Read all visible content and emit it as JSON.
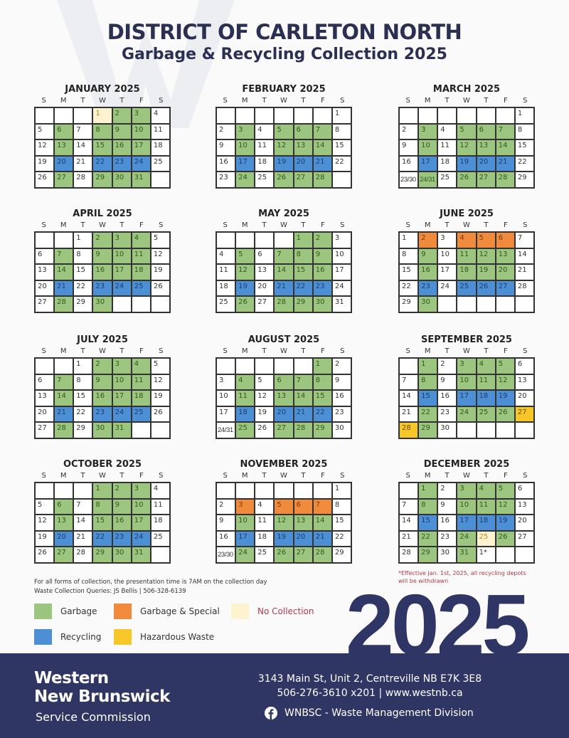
{
  "header": {
    "title": "DISTRICT OF CARLETON NORTH",
    "subtitle": "Garbage & Recycling Collection 2025"
  },
  "weekdays": [
    "S",
    "M",
    "T",
    "W",
    "T",
    "F",
    "S"
  ],
  "colors": {
    "garbage": "#9cc67f",
    "recycling": "#4d8fd5",
    "garbage_special": "#f08a3c",
    "hazardous": "#f7c72a",
    "no_collection": "#fdf4cf",
    "navy": "#303663"
  },
  "months": [
    {
      "name": "JANUARY 2025",
      "weeks": [
        [
          "",
          "",
          "",
          "1",
          "2",
          "3",
          "4"
        ],
        [
          "5",
          "6",
          "7",
          "8",
          "9",
          "10",
          "11"
        ],
        [
          "12",
          "13",
          "14",
          "15",
          "16",
          "17",
          "18"
        ],
        [
          "19",
          "20",
          "21",
          "22",
          "23",
          "24",
          "25"
        ],
        [
          "26",
          "27",
          "28",
          "29",
          "30",
          "31",
          ""
        ]
      ],
      "types": [
        "...ngg.",
        ".g.ggg.",
        ".g.ggg.",
        ".b.bbb.",
        ".g.ggg."
      ]
    },
    {
      "name": "FEBRUARY 2025",
      "weeks": [
        [
          "",
          "",
          "",
          "",
          "",
          "",
          "1"
        ],
        [
          "2",
          "3",
          "4",
          "5",
          "6",
          "7",
          "8"
        ],
        [
          "9",
          "10",
          "11",
          "12",
          "13",
          "14",
          "15"
        ],
        [
          "16",
          "17",
          "18",
          "19",
          "20",
          "21",
          "22"
        ],
        [
          "23",
          "24",
          "25",
          "26",
          "27",
          "28",
          ""
        ]
      ],
      "types": [
        ".......",
        ".g.ggg.",
        ".g.ggg.",
        ".b.bbb.",
        ".g.ggg."
      ]
    },
    {
      "name": "MARCH 2025",
      "weeks": [
        [
          "",
          "",
          "",
          "",
          "",
          "",
          "1"
        ],
        [
          "2",
          "3",
          "4",
          "5",
          "6",
          "7",
          "8"
        ],
        [
          "9",
          "10",
          "11",
          "12",
          "13",
          "14",
          "15"
        ],
        [
          "16",
          "17",
          "18",
          "19",
          "20",
          "21",
          "22"
        ],
        [
          "23/30",
          "24/31",
          "25",
          "26",
          "27",
          "28",
          "29"
        ]
      ],
      "types": [
        ".......",
        ".g.ggg.",
        ".g.ggg.",
        ".b.bbb.",
        ".g.ggg."
      ]
    },
    {
      "name": "APRIL 2025",
      "weeks": [
        [
          "",
          "",
          "1",
          "2",
          "3",
          "4",
          "5"
        ],
        [
          "6",
          "7",
          "8",
          "9",
          "10",
          "11",
          "12"
        ],
        [
          "13",
          "14",
          "15",
          "16",
          "17",
          "18",
          "19"
        ],
        [
          "20",
          "21",
          "22",
          "23",
          "24",
          "25",
          "26"
        ],
        [
          "27",
          "28",
          "29",
          "30",
          "",
          "",
          ""
        ]
      ],
      "types": [
        "...ggg.",
        ".g.ggg.",
        ".g.ggg.",
        ".b.bbb.",
        ".g.g..."
      ]
    },
    {
      "name": "MAY 2025",
      "weeks": [
        [
          "",
          "",
          "",
          "",
          "1",
          "2",
          "3"
        ],
        [
          "4",
          "5",
          "6",
          "7",
          "8",
          "9",
          "10"
        ],
        [
          "11",
          "12",
          "13",
          "14",
          "15",
          "16",
          "17"
        ],
        [
          "18",
          "19",
          "20",
          "21",
          "22",
          "23",
          "24"
        ],
        [
          "25",
          "26",
          "27",
          "28",
          "29",
          "30",
          "31"
        ]
      ],
      "types": [
        "....gg.",
        ".g.ggg.",
        ".g.ggg.",
        ".b.bbb.",
        ".g.ggg."
      ]
    },
    {
      "name": "JUNE 2025",
      "weeks": [
        [
          "1",
          "2",
          "3",
          "4",
          "5",
          "6",
          "7"
        ],
        [
          "8",
          "9",
          "10",
          "11",
          "12",
          "13",
          "14"
        ],
        [
          "15",
          "16",
          "17",
          "18",
          "19",
          "20",
          "21"
        ],
        [
          "22",
          "23",
          "24",
          "25",
          "26",
          "27",
          "28"
        ],
        [
          "29",
          "30",
          "",
          "",
          "",
          "",
          ""
        ]
      ],
      "types": [
        ".o.ooo.",
        ".g.ggg.",
        ".g.ggg.",
        ".b.bbb.",
        ".g....."
      ]
    },
    {
      "name": "JULY 2025",
      "weeks": [
        [
          "",
          "",
          "1",
          "2",
          "3",
          "4",
          "5"
        ],
        [
          "6",
          "7",
          "8",
          "9",
          "10",
          "11",
          "12"
        ],
        [
          "13",
          "14",
          "15",
          "16",
          "17",
          "18",
          "19"
        ],
        [
          "20",
          "21",
          "22",
          "23",
          "24",
          "25",
          "26"
        ],
        [
          "27",
          "28",
          "29",
          "30",
          "31",
          "",
          ""
        ]
      ],
      "types": [
        "...ggg.",
        ".g.ggg.",
        ".g.ggg.",
        ".b.bbb.",
        ".g.gg.."
      ]
    },
    {
      "name": "AUGUST 2025",
      "weeks": [
        [
          "",
          "",
          "",
          "",
          "",
          "1",
          "2"
        ],
        [
          "3",
          "4",
          "5",
          "6",
          "7",
          "8",
          "9"
        ],
        [
          "10",
          "11",
          "12",
          "13",
          "14",
          "15",
          "16"
        ],
        [
          "17",
          "18",
          "19",
          "20",
          "21",
          "22",
          "23"
        ],
        [
          "24/31",
          "25",
          "26",
          "27",
          "28",
          "29",
          "30"
        ]
      ],
      "types": [
        ".....g.",
        ".g.ggg.",
        ".g.ggg.",
        ".b.bbb.",
        ".g.ggg."
      ]
    },
    {
      "name": "SEPTEMBER 2025",
      "weeks": [
        [
          "",
          "1",
          "2",
          "3",
          "4",
          "5",
          "6"
        ],
        [
          "7",
          "8",
          "9",
          "10",
          "11",
          "12",
          "13"
        ],
        [
          "14",
          "15",
          "16",
          "17",
          "18",
          "19",
          "20"
        ],
        [
          "21",
          "22",
          "23",
          "24",
          "25",
          "26",
          "27"
        ],
        [
          "28",
          "29",
          "30",
          "",
          "",
          "",
          ""
        ]
      ],
      "types": [
        ".g.ggg.",
        ".g.ggg.",
        ".b.bbb.",
        ".g.gggy",
        "yg....."
      ]
    },
    {
      "name": "OCTOBER 2025",
      "weeks": [
        [
          "",
          "",
          "",
          "1",
          "2",
          "3",
          "4"
        ],
        [
          "5",
          "6",
          "7",
          "8",
          "9",
          "10",
          "11"
        ],
        [
          "12",
          "13",
          "14",
          "15",
          "16",
          "17",
          "18"
        ],
        [
          "19",
          "20",
          "21",
          "22",
          "23",
          "24",
          "25"
        ],
        [
          "26",
          "27",
          "28",
          "29",
          "30",
          "31",
          ""
        ]
      ],
      "types": [
        "...ggg.",
        ".g.ggg.",
        ".g.ggg.",
        ".b.bbb.",
        ".g.ggg."
      ]
    },
    {
      "name": "NOVEMBER 2025",
      "weeks": [
        [
          "",
          "",
          "",
          "",
          "",
          "",
          "1"
        ],
        [
          "2",
          "3",
          "4",
          "5",
          "6",
          "7",
          "8"
        ],
        [
          "9",
          "10",
          "11",
          "12",
          "13",
          "14",
          "15"
        ],
        [
          "16",
          "17",
          "18",
          "19",
          "20",
          "21",
          "22"
        ],
        [
          "23/30",
          "24",
          "25",
          "26",
          "27",
          "28",
          "29"
        ]
      ],
      "types": [
        ".......",
        ".o.ooo.",
        ".g.ggg.",
        ".b.bbb.",
        ".g.ggg."
      ]
    },
    {
      "name": "DECEMBER 2025",
      "weeks": [
        [
          "",
          "1",
          "2",
          "3",
          "4",
          "5",
          "6"
        ],
        [
          "7",
          "8",
          "9",
          "10",
          "11",
          "12",
          "13"
        ],
        [
          "14",
          "15",
          "16",
          "17",
          "18",
          "19",
          "20"
        ],
        [
          "21",
          "22",
          "23",
          "24",
          "25",
          "26",
          "27"
        ],
        [
          "28",
          "29",
          "30",
          "31",
          "1*",
          "",
          ""
        ]
      ],
      "types": [
        ".g.ggg.",
        ".g.ggg.",
        ".b.bbb.",
        ".g.gng.",
        ".g.g..."
      ]
    }
  ],
  "notes": {
    "line1": "For all forms of collection, the presentation time is 7AM on the collection day",
    "line2": "Waste Collection Queries: JS Bellis | 506-328-6139",
    "depot": "*Effective Jan. 1st, 2025, all recycling depots will be withdrawn"
  },
  "legend": {
    "garbage": "Garbage",
    "garbage_special": "Garbage & Special",
    "no_collection": "No Collection",
    "recycling": "Recycling",
    "hazardous": "Hazardous Waste"
  },
  "year_banner": "2025",
  "footer": {
    "org_line1": "Western",
    "org_line2": "New Brunswick",
    "org_line3": "Service Commission",
    "address": "3143 Main St, Unit 2, Centreville NB E7K 3E8",
    "contact": "506-276-3610 x201 | www.westnb.ca",
    "facebook": "WNBSC - Waste Management Division"
  }
}
